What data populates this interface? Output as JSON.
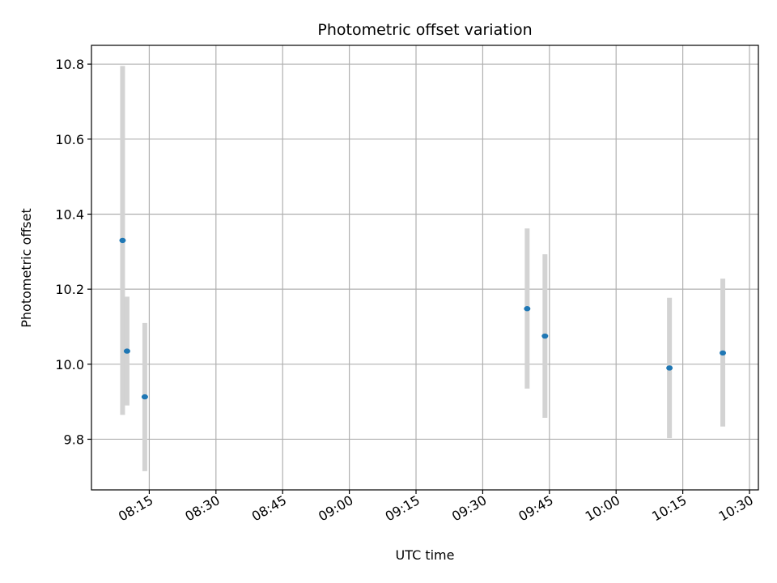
{
  "chart_data": {
    "type": "scatter",
    "title": "Photometric offset variation",
    "xlabel": "UTC time",
    "ylabel": "Photometric offset",
    "x_unit": "UTC time (HH:MM)",
    "xlim": [
      "08:02",
      "10:32"
    ],
    "ylim": [
      9.665,
      10.85
    ],
    "x_ticks": [
      "08:15",
      "08:30",
      "08:45",
      "09:00",
      "09:15",
      "09:30",
      "09:45",
      "10:00",
      "10:15",
      "10:30"
    ],
    "y_ticks": [
      9.8,
      10.0,
      10.2,
      10.4,
      10.6,
      10.8
    ],
    "y_tick_labels": [
      "9.8",
      "10.0",
      "10.2",
      "10.4",
      "10.6",
      "10.8"
    ],
    "grid": true,
    "colors": {
      "marker": "#1f77b4",
      "errorbar": "#d3d3d3",
      "grid": "#b0b0b0"
    },
    "series": [
      {
        "points": [
          {
            "x": "08:09",
            "y": 10.33,
            "yerr_low": 9.865,
            "yerr_high": 10.795
          },
          {
            "x": "08:10",
            "y": 10.035,
            "yerr_low": 9.89,
            "yerr_high": 10.18
          },
          {
            "x": "08:14",
            "y": 9.913,
            "yerr_low": 9.715,
            "yerr_high": 10.11
          },
          {
            "x": "09:40",
            "y": 10.148,
            "yerr_low": 9.935,
            "yerr_high": 10.362
          },
          {
            "x": "09:44",
            "y": 10.075,
            "yerr_low": 9.857,
            "yerr_high": 10.293
          },
          {
            "x": "10:12",
            "y": 9.99,
            "yerr_low": 9.803,
            "yerr_high": 10.177
          },
          {
            "x": "10:24",
            "y": 10.03,
            "yerr_low": 9.834,
            "yerr_high": 10.228
          }
        ]
      }
    ]
  }
}
